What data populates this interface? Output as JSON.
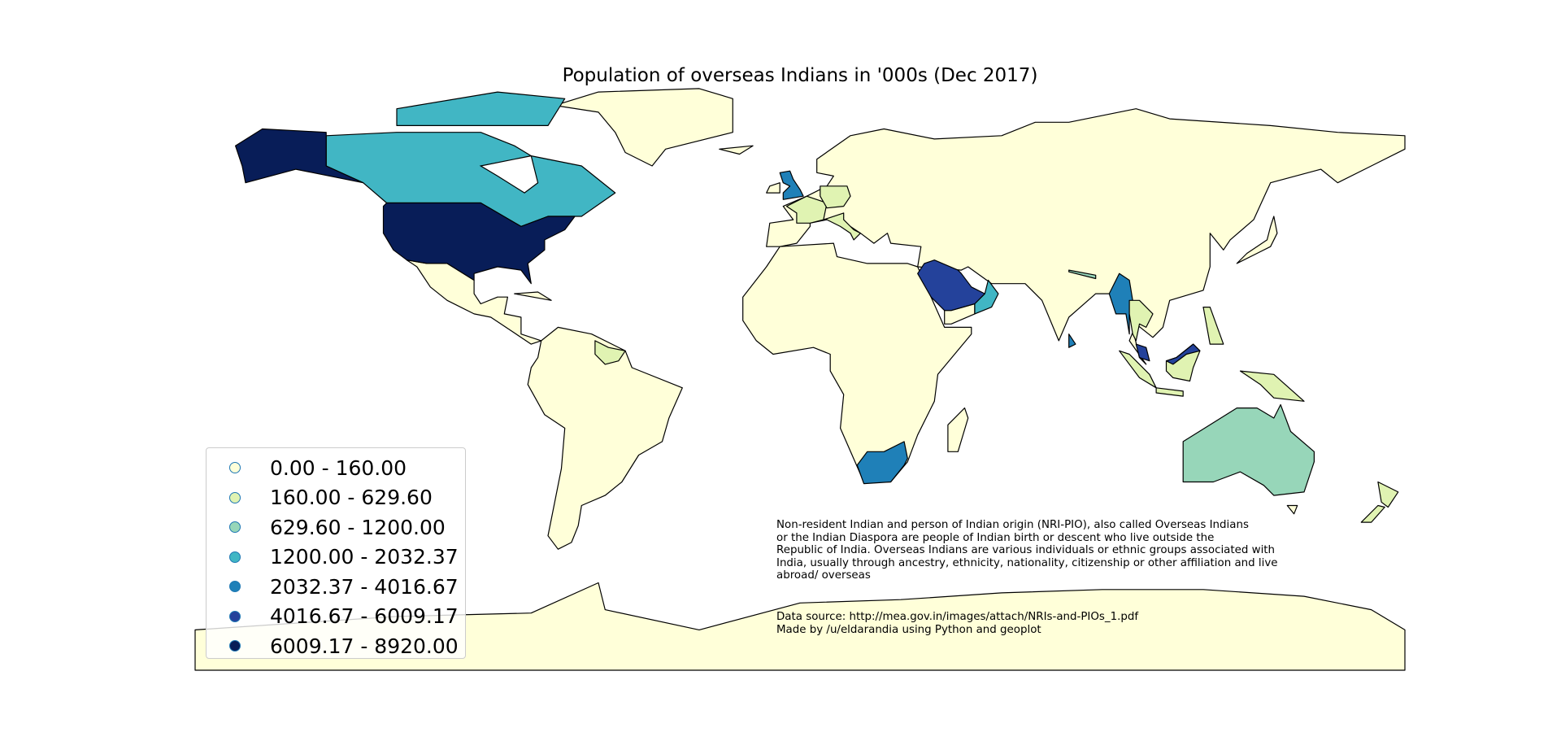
{
  "title": "Population of overseas Indians in '000s (Dec 2017)",
  "legend": {
    "entries": [
      {
        "label": "0.00 - 160.00",
        "color": "#ffffd9"
      },
      {
        "label": "160.00 - 629.60",
        "color": "#e0f3b2"
      },
      {
        "label": "629.60 - 1200.00",
        "color": "#97d6b9"
      },
      {
        "label": "1200.00 - 2032.37",
        "color": "#41b6c4"
      },
      {
        "label": "2032.37 - 4016.67",
        "color": "#1f80b8"
      },
      {
        "label": "4016.67 - 6009.17",
        "color": "#24429b"
      },
      {
        "label": "6009.17 - 8920.00",
        "color": "#081d58"
      }
    ]
  },
  "country_class": {
    "Eurasia": 0,
    "Africa": 0,
    "South America": 0,
    "Mexico & Central America": 0,
    "Greenland": 0,
    "Antarctica": 0,
    "Ireland": 0,
    "Iceland": 0,
    "Japan": 0,
    "Madagascar": 0,
    "Yemen": 0,
    "Cuba": 0,
    "Tasmania": 0,
    "United States": 6,
    "Alaska": 6,
    "Canada": 3,
    "Canadian Arctic Islands": 3,
    "Oman": 3,
    "United Kingdom": 4,
    "Myanmar": 4,
    "South Africa": 4,
    "Sri Lanka": 4,
    "Saudi Arabia": 5,
    "Malaysia (Peninsula)": 5,
    "Malaysia (Borneo)": 5,
    "France": 1,
    "Germany": 1,
    "Italy": 1,
    "Thailand": 1,
    "Indonesia (Borneo)": 1,
    "Sumatra": 1,
    "Java": 1,
    "New Guinea": 1,
    "Philippines": 1,
    "Guyana & Suriname": 1,
    "New Zealand North": 1,
    "New Zealand South": 1,
    "Nepal": 2,
    "Australia": 2
  },
  "note": {
    "lines": [
      "Non-resident Indian and person of Indian origin (NRI-PIO), also called Overseas Indians",
      "or the Indian Diaspora are people of Indian birth or descent who live outside the",
      "Republic of India. Overseas Indians are various individuals or ethnic groups associated with",
      "India, usually through ancestry, ethnicity, nationality, citizenship or other affiliation and live",
      "abroad/ overseas"
    ],
    "source": "Data source: http://mea.gov.in/images/attach/NRIs-and-PIOs_1.pdf",
    "credit": "Made by /u/eldarandia using Python and geoplot"
  }
}
